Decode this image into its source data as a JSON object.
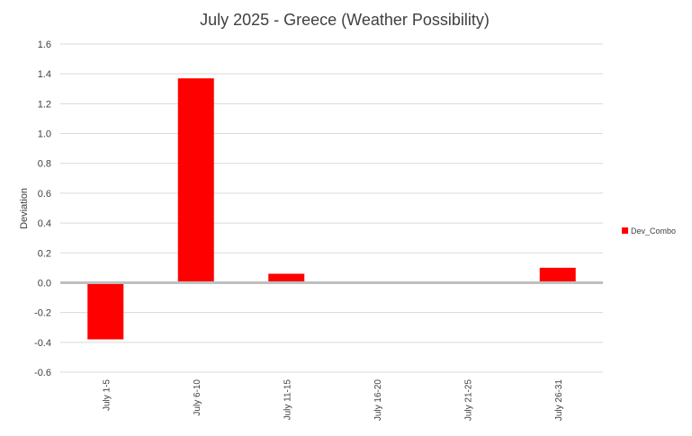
{
  "chart_data": {
    "type": "bar",
    "title": "July 2025 - Greece (Weather Possibility)",
    "xlabel": "",
    "ylabel": "Deviation",
    "categories": [
      "July 1-5",
      "July 6-10",
      "July 11-15",
      "July 16-20",
      "July 21-25",
      "July 26-31"
    ],
    "series": [
      {
        "name": "Dev_Combo",
        "values": [
          -0.38,
          1.37,
          0.06,
          0.0,
          0.0,
          0.1
        ],
        "color": "#ff0000"
      }
    ],
    "ylim": [
      -0.6,
      1.6
    ],
    "yticks": [
      "-0.6",
      "-0.4",
      "-0.2",
      "0.0",
      "0.2",
      "0.4",
      "0.6",
      "0.8",
      "1.0",
      "1.2",
      "1.4",
      "1.6"
    ],
    "grid": true,
    "legend_position": "right"
  }
}
